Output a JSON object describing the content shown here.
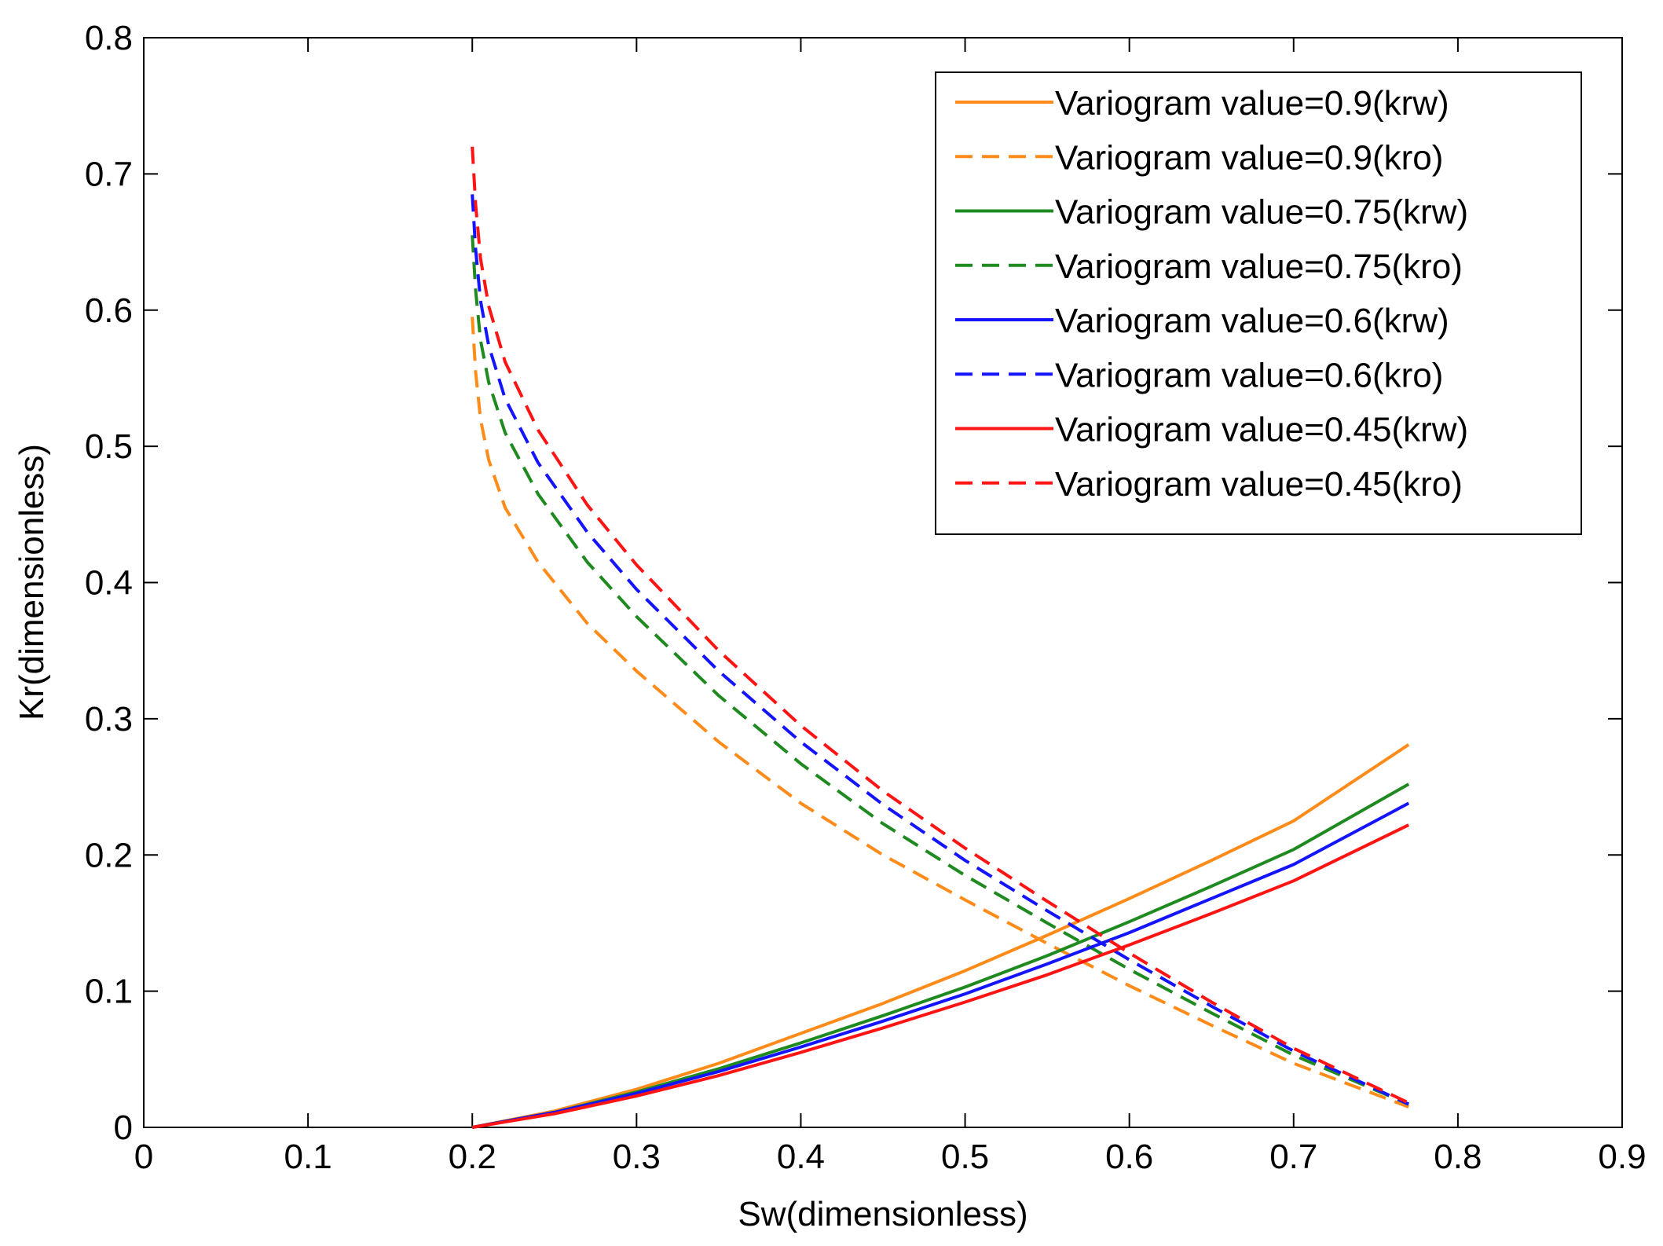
{
  "chart_data": {
    "type": "line",
    "title": "",
    "xlabel": "Sw(dimensionless)",
    "ylabel": "Kr(dimensionless)",
    "xlim": [
      0,
      0.9
    ],
    "ylim": [
      0,
      0.8
    ],
    "xticks": [
      0,
      0.1,
      0.2,
      0.3,
      0.4,
      0.5,
      0.6,
      0.7,
      0.8,
      0.9
    ],
    "yticks": [
      0,
      0.1,
      0.2,
      0.3,
      0.4,
      0.5,
      0.6,
      0.7,
      0.8
    ],
    "xtick_labels": [
      "0",
      "0.1",
      "0.2",
      "0.3",
      "0.4",
      "0.5",
      "0.6",
      "0.7",
      "0.8",
      "0.9"
    ],
    "ytick_labels": [
      "0",
      "0.1",
      "0.2",
      "0.3",
      "0.4",
      "0.5",
      "0.6",
      "0.7",
      "0.8"
    ],
    "grid": false,
    "legend_position": "top-right",
    "series": [
      {
        "name": "Variogram value=0.9(krw)",
        "color": "#ff8c1a",
        "style": "solid",
        "x": [
          0.2,
          0.25,
          0.3,
          0.35,
          0.4,
          0.45,
          0.5,
          0.55,
          0.6,
          0.65,
          0.7,
          0.77
        ],
        "y": [
          0.0,
          0.012,
          0.028,
          0.047,
          0.069,
          0.091,
          0.115,
          0.141,
          0.168,
          0.196,
          0.225,
          0.281
        ]
      },
      {
        "name": "Variogram value=0.9(kro)",
        "color": "#ff8c1a",
        "style": "dashed",
        "x": [
          0.2,
          0.202,
          0.205,
          0.21,
          0.22,
          0.24,
          0.27,
          0.3,
          0.35,
          0.4,
          0.45,
          0.5,
          0.55,
          0.6,
          0.65,
          0.7,
          0.77
        ],
        "y": [
          0.595,
          0.555,
          0.52,
          0.49,
          0.455,
          0.415,
          0.37,
          0.335,
          0.283,
          0.238,
          0.2,
          0.167,
          0.135,
          0.104,
          0.075,
          0.047,
          0.015
        ]
      },
      {
        "name": "Variogram value=0.75(krw)",
        "color": "#1f8a1f",
        "style": "solid",
        "x": [
          0.2,
          0.25,
          0.3,
          0.35,
          0.4,
          0.45,
          0.5,
          0.55,
          0.6,
          0.65,
          0.7,
          0.77
        ],
        "y": [
          0.0,
          0.011,
          0.026,
          0.043,
          0.062,
          0.082,
          0.103,
          0.126,
          0.151,
          0.177,
          0.204,
          0.252
        ]
      },
      {
        "name": "Variogram value=0.75(kro)",
        "color": "#1f8a1f",
        "style": "dashed",
        "x": [
          0.2,
          0.202,
          0.205,
          0.21,
          0.22,
          0.24,
          0.27,
          0.3,
          0.35,
          0.4,
          0.45,
          0.5,
          0.55,
          0.6,
          0.65,
          0.7,
          0.77
        ],
        "y": [
          0.655,
          0.615,
          0.578,
          0.547,
          0.51,
          0.465,
          0.415,
          0.375,
          0.317,
          0.267,
          0.223,
          0.185,
          0.15,
          0.116,
          0.084,
          0.053,
          0.017
        ]
      },
      {
        "name": "Variogram value=0.6(krw)",
        "color": "#1414ff",
        "style": "solid",
        "x": [
          0.2,
          0.25,
          0.3,
          0.35,
          0.4,
          0.45,
          0.5,
          0.55,
          0.6,
          0.65,
          0.7,
          0.77
        ],
        "y": [
          0.0,
          0.011,
          0.025,
          0.041,
          0.059,
          0.078,
          0.098,
          0.12,
          0.143,
          0.168,
          0.193,
          0.238
        ]
      },
      {
        "name": "Variogram value=0.6(kro)",
        "color": "#1414ff",
        "style": "dashed",
        "x": [
          0.2,
          0.202,
          0.205,
          0.21,
          0.22,
          0.24,
          0.27,
          0.3,
          0.35,
          0.4,
          0.45,
          0.5,
          0.55,
          0.6,
          0.65,
          0.7,
          0.77
        ],
        "y": [
          0.685,
          0.645,
          0.607,
          0.574,
          0.535,
          0.488,
          0.437,
          0.395,
          0.335,
          0.283,
          0.237,
          0.196,
          0.159,
          0.123,
          0.089,
          0.056,
          0.017
        ]
      },
      {
        "name": "Variogram value=0.45(krw)",
        "color": "#ff1414",
        "style": "solid",
        "x": [
          0.2,
          0.25,
          0.3,
          0.35,
          0.4,
          0.45,
          0.5,
          0.55,
          0.6,
          0.65,
          0.7,
          0.77
        ],
        "y": [
          0.0,
          0.01,
          0.023,
          0.038,
          0.055,
          0.073,
          0.092,
          0.112,
          0.134,
          0.157,
          0.181,
          0.222
        ]
      },
      {
        "name": "Variogram value=0.45(kro)",
        "color": "#ff1414",
        "style": "dashed",
        "x": [
          0.2,
          0.202,
          0.205,
          0.21,
          0.22,
          0.24,
          0.27,
          0.3,
          0.35,
          0.4,
          0.45,
          0.5,
          0.55,
          0.6,
          0.65,
          0.7,
          0.77
        ],
        "y": [
          0.72,
          0.678,
          0.638,
          0.603,
          0.562,
          0.512,
          0.457,
          0.413,
          0.35,
          0.295,
          0.247,
          0.205,
          0.166,
          0.128,
          0.092,
          0.058,
          0.018
        ]
      }
    ]
  }
}
